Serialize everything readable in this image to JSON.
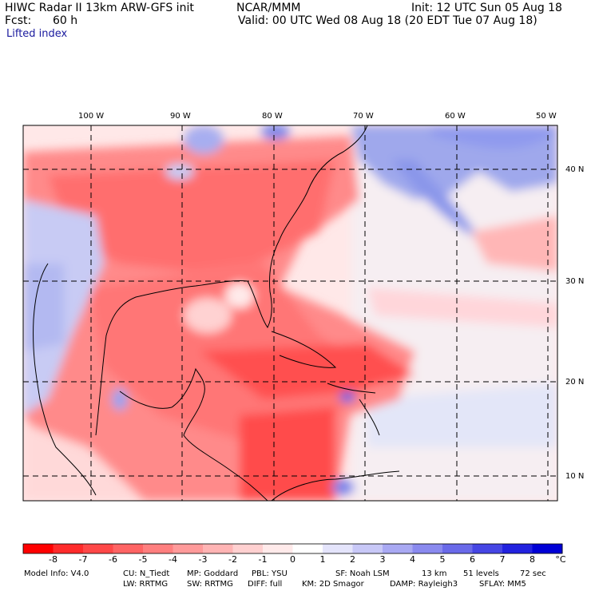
{
  "header": {
    "title": "HIWC Radar II 13km ARW-GFS init",
    "org": "NCAR/MMM",
    "init": "Init: 12 UTC Sun 05 Aug 18",
    "fcst_label": "Fcst:",
    "fcst_value": "60 h",
    "valid": "Valid: 00 UTC Wed 08 Aug 18 (20 EDT Tue 07 Aug 18)",
    "field": "Lifted index"
  },
  "map": {
    "lon_labels": [
      "100 W",
      "90 W",
      "80 W",
      "70 W",
      "60 W",
      "50 W"
    ],
    "lat_labels": [
      "40 N",
      "30 N",
      "20 N",
      "10 N"
    ]
  },
  "colorbar": {
    "labels": [
      "-8",
      "-7",
      "-6",
      "-5",
      "-4",
      "-3",
      "-2",
      "-1",
      "0",
      "1",
      "2",
      "3",
      "4",
      "5",
      "6",
      "7",
      "8"
    ],
    "unit": "°C",
    "colors": [
      "#ff0000",
      "#ff2b2b",
      "#ff4848",
      "#ff6464",
      "#ff7f7f",
      "#ff9a9a",
      "#ffb4b4",
      "#ffd0d0",
      "#ffeaea",
      "#ffffff",
      "#e4e4fb",
      "#c8c8f7",
      "#a9a9f3",
      "#8a8aef",
      "#6a6ae9",
      "#4646e4",
      "#2222df",
      "#0000d6"
    ]
  },
  "footer": {
    "line1": [
      "Model Info: V4.0",
      "CU: N_Tiedt",
      "MP: Goddard",
      "PBL: YSU",
      "SF: Noah LSM",
      "13 km",
      "51 levels",
      "72 sec"
    ],
    "line2": [
      "LW: RRTMG",
      "SW: RRTMG",
      "DIFF: full",
      "KM: 2D Smagor",
      "DAMP: Rayleigh3",
      "SFLAY: MM5"
    ]
  }
}
